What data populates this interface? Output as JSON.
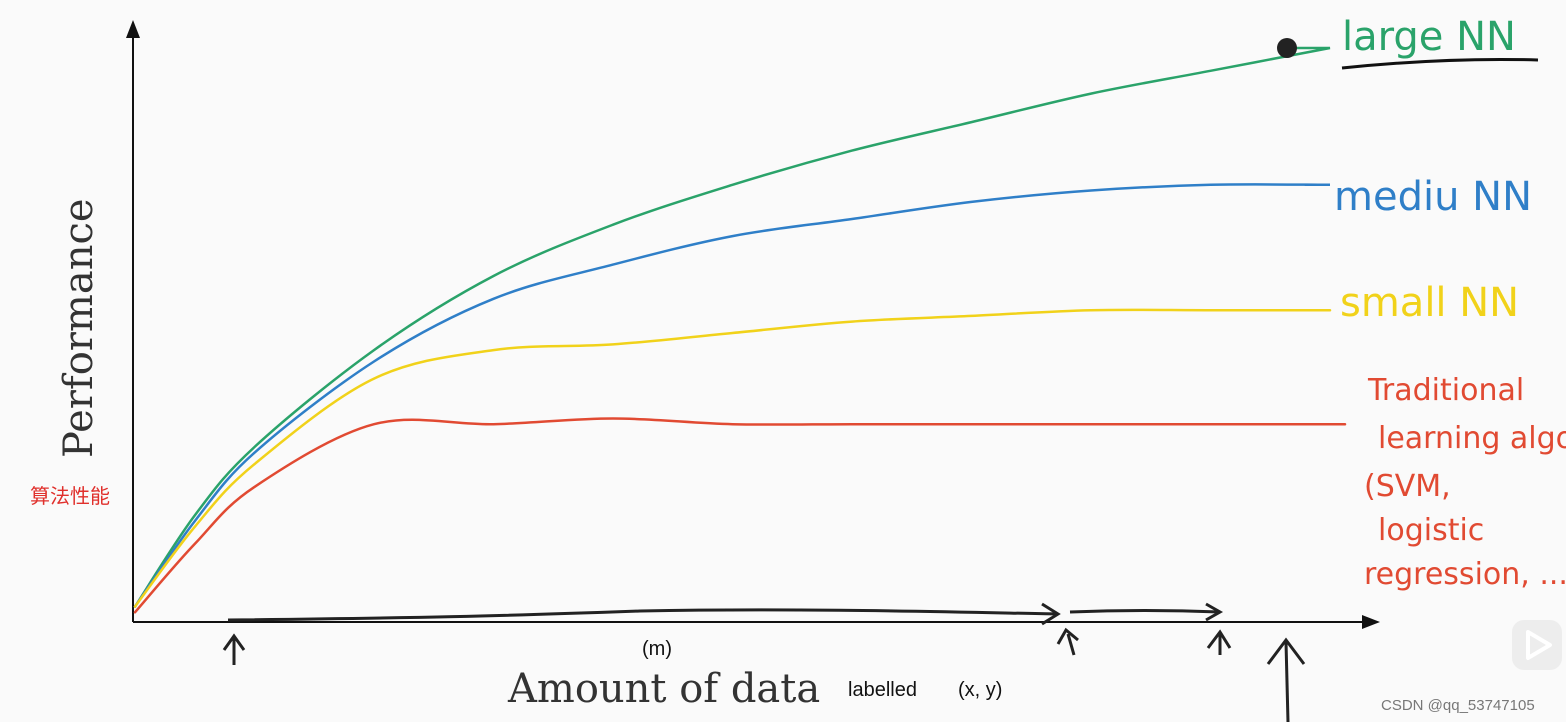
{
  "chart_data": {
    "type": "line",
    "title": "",
    "xlabel": "Amount of data",
    "ylabel": "Performance",
    "xlim": [
      0,
      100
    ],
    "ylim": [
      0,
      100
    ],
    "grid": false,
    "legend": "right, hand-written labels at line ends",
    "series": [
      {
        "name": "large NN",
        "color": "#2aa36a",
        "x": [
          0,
          5,
          10,
          20,
          30,
          40,
          50,
          60,
          70,
          80,
          90,
          100
        ],
        "y": [
          2,
          18,
          30,
          47,
          60,
          69,
          76,
          82,
          87,
          92,
          96,
          100
        ]
      },
      {
        "name": "medium NN",
        "color": "#2f7fc8",
        "x": [
          0,
          5,
          10,
          20,
          30,
          40,
          50,
          60,
          70,
          80,
          90,
          100
        ],
        "y": [
          2,
          17,
          29,
          45,
          56,
          62,
          67,
          70,
          73,
          75,
          76,
          76
        ]
      },
      {
        "name": "small NN",
        "color": "#f1d21a",
        "x": [
          0,
          5,
          10,
          20,
          30,
          40,
          50,
          60,
          70,
          80,
          90,
          100
        ],
        "y": [
          2,
          16,
          27,
          42,
          47,
          48,
          50,
          52,
          53,
          54,
          54,
          54
        ]
      },
      {
        "name": "Traditional learning algo",
        "color": "#e14a32",
        "x": [
          0,
          5,
          10,
          20,
          30,
          40,
          50,
          60,
          70,
          80,
          90,
          100
        ],
        "y": [
          1,
          13,
          23,
          34,
          34,
          35,
          34,
          34,
          34,
          34,
          34,
          34
        ]
      }
    ],
    "labels": {
      "large": "large NN",
      "medium": "mediu NN",
      "small": "small NN",
      "traditional": [
        "Traditional",
        "learning algo",
        "(SVM,",
        "logistic",
        "regression, ...)"
      ]
    },
    "annotations": {
      "ylabel_cn": "算法性能",
      "m": "(m)",
      "labelled": "labelled",
      "xy": "(x, y)",
      "watermark": "CSDN @qq_53747105"
    },
    "marker_at": "large NN end"
  }
}
